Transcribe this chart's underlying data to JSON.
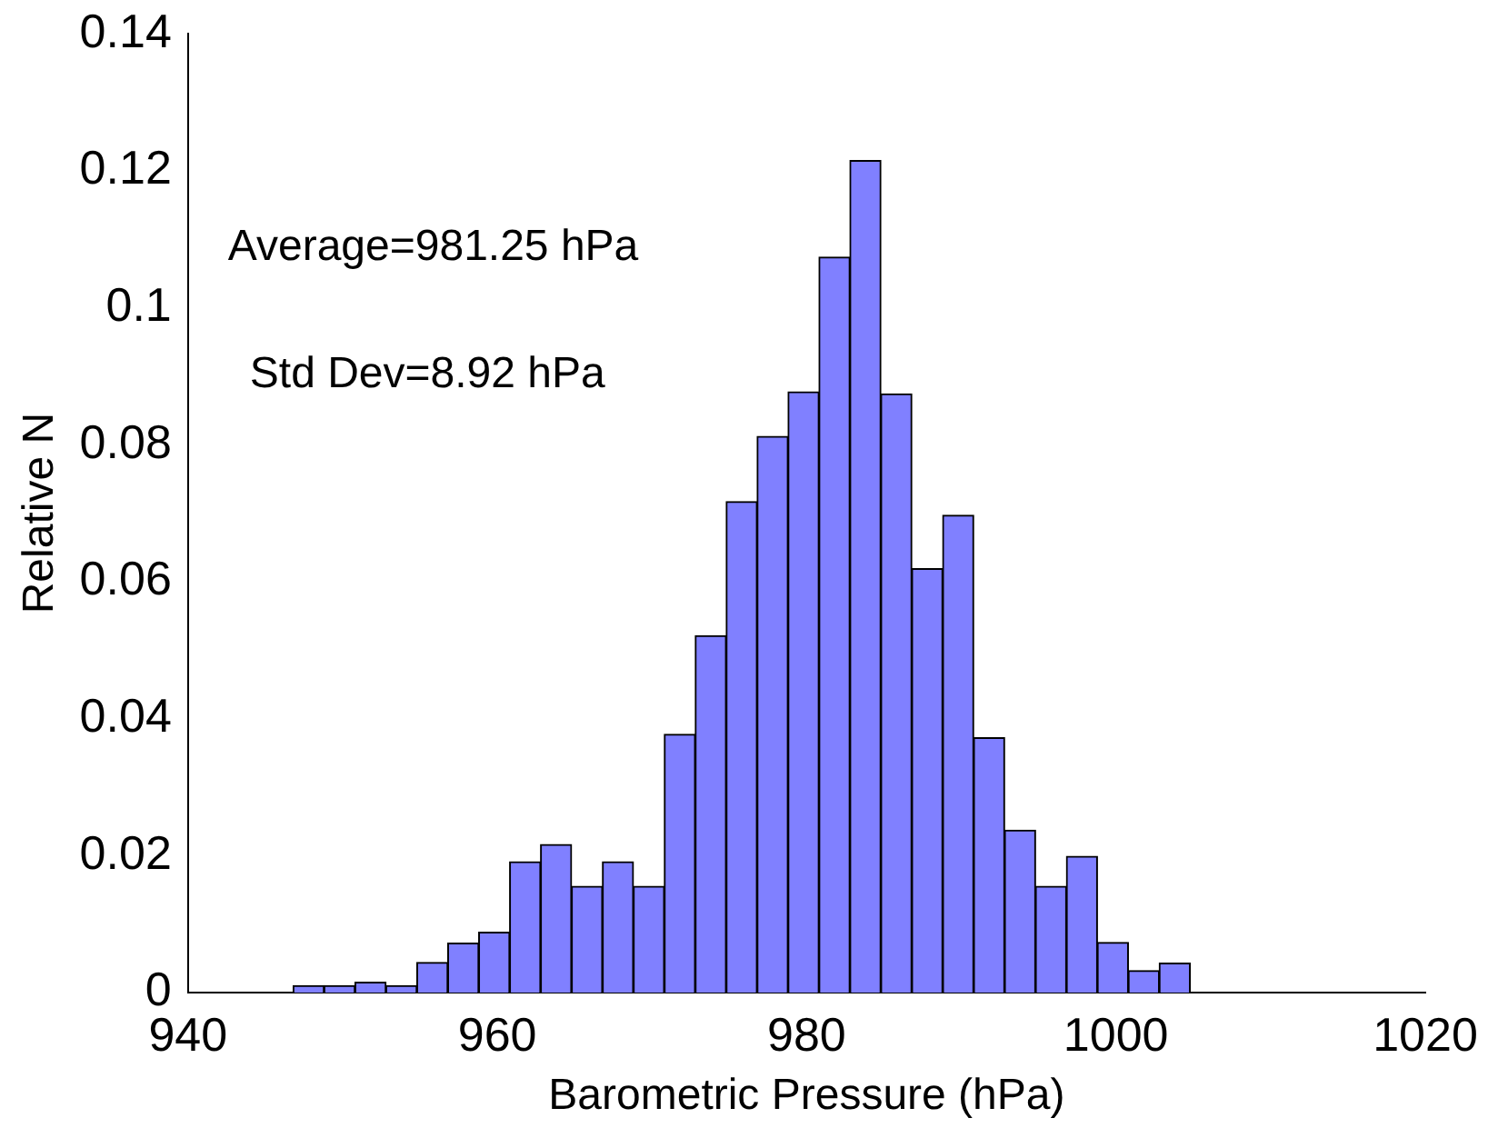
{
  "chart_data": {
    "type": "histogram",
    "xlabel": "Barometric Pressure (hPa)",
    "ylabel": "Relative N",
    "bins": [
      946.8,
      948.8,
      950.8,
      952.8,
      954.8,
      956.8,
      958.8,
      960.8,
      962.8,
      964.8,
      966.8,
      968.8,
      970.8,
      972.8,
      974.8,
      976.8,
      978.8,
      980.8,
      982.8,
      984.8,
      986.8,
      988.8,
      990.8,
      992.8,
      994.8,
      996.8,
      998.8,
      1000.8,
      1002.8,
      1004.8
    ],
    "values": [
      0.001,
      0.001,
      0.0015,
      0.001,
      0.0044,
      0.0072,
      0.0088,
      0.0191,
      0.0216,
      0.0155,
      0.0191,
      0.0155,
      0.0377,
      0.0521,
      0.0717,
      0.0812,
      0.0877,
      0.1074,
      0.1215,
      0.0874,
      0.0619,
      0.0697,
      0.0372,
      0.0237,
      0.0155,
      0.0199,
      0.0073,
      0.0032,
      0.0043
    ],
    "color": "#8080ff",
    "xlim": [
      940,
      1020
    ],
    "xticks": [
      940,
      960,
      980,
      1000,
      1020
    ],
    "ylim": [
      0,
      0.14
    ],
    "yticks": [
      0,
      0.02,
      0.04,
      0.06,
      0.08,
      0.1,
      0.12,
      0.14
    ],
    "grid": false,
    "annotations": [
      "Average=981.25 hPa",
      "Std Dev=8.92 hPa"
    ]
  }
}
